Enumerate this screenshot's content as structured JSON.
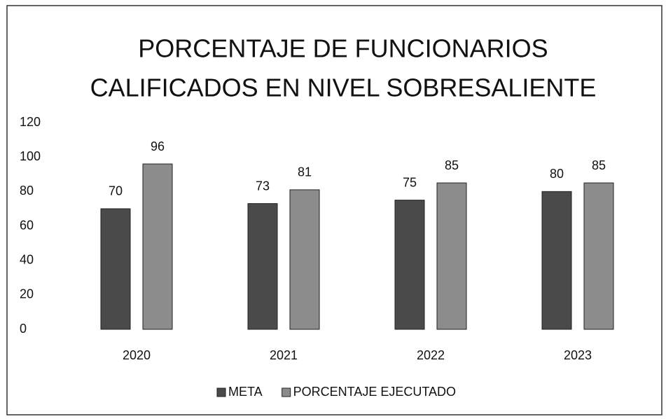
{
  "chart_data": {
    "type": "bar",
    "title": [
      "PORCENTAJE DE FUNCIONARIOS",
      "CALIFICADOS EN NIVEL SOBRESALIENTE"
    ],
    "categories": [
      "2020",
      "2021",
      "2022",
      "2023"
    ],
    "series": [
      {
        "name": "META",
        "color": "#4a4a4a",
        "values": [
          70,
          73,
          75,
          80
        ]
      },
      {
        "name": "PORCENTAJE EJECUTADO",
        "color": "#8c8c8c",
        "values": [
          96,
          81,
          85,
          85
        ]
      }
    ],
    "ylim": [
      0,
      120
    ],
    "yticks": [
      0,
      20,
      40,
      60,
      80,
      100,
      120
    ],
    "grid": false,
    "legend": "bottom"
  }
}
